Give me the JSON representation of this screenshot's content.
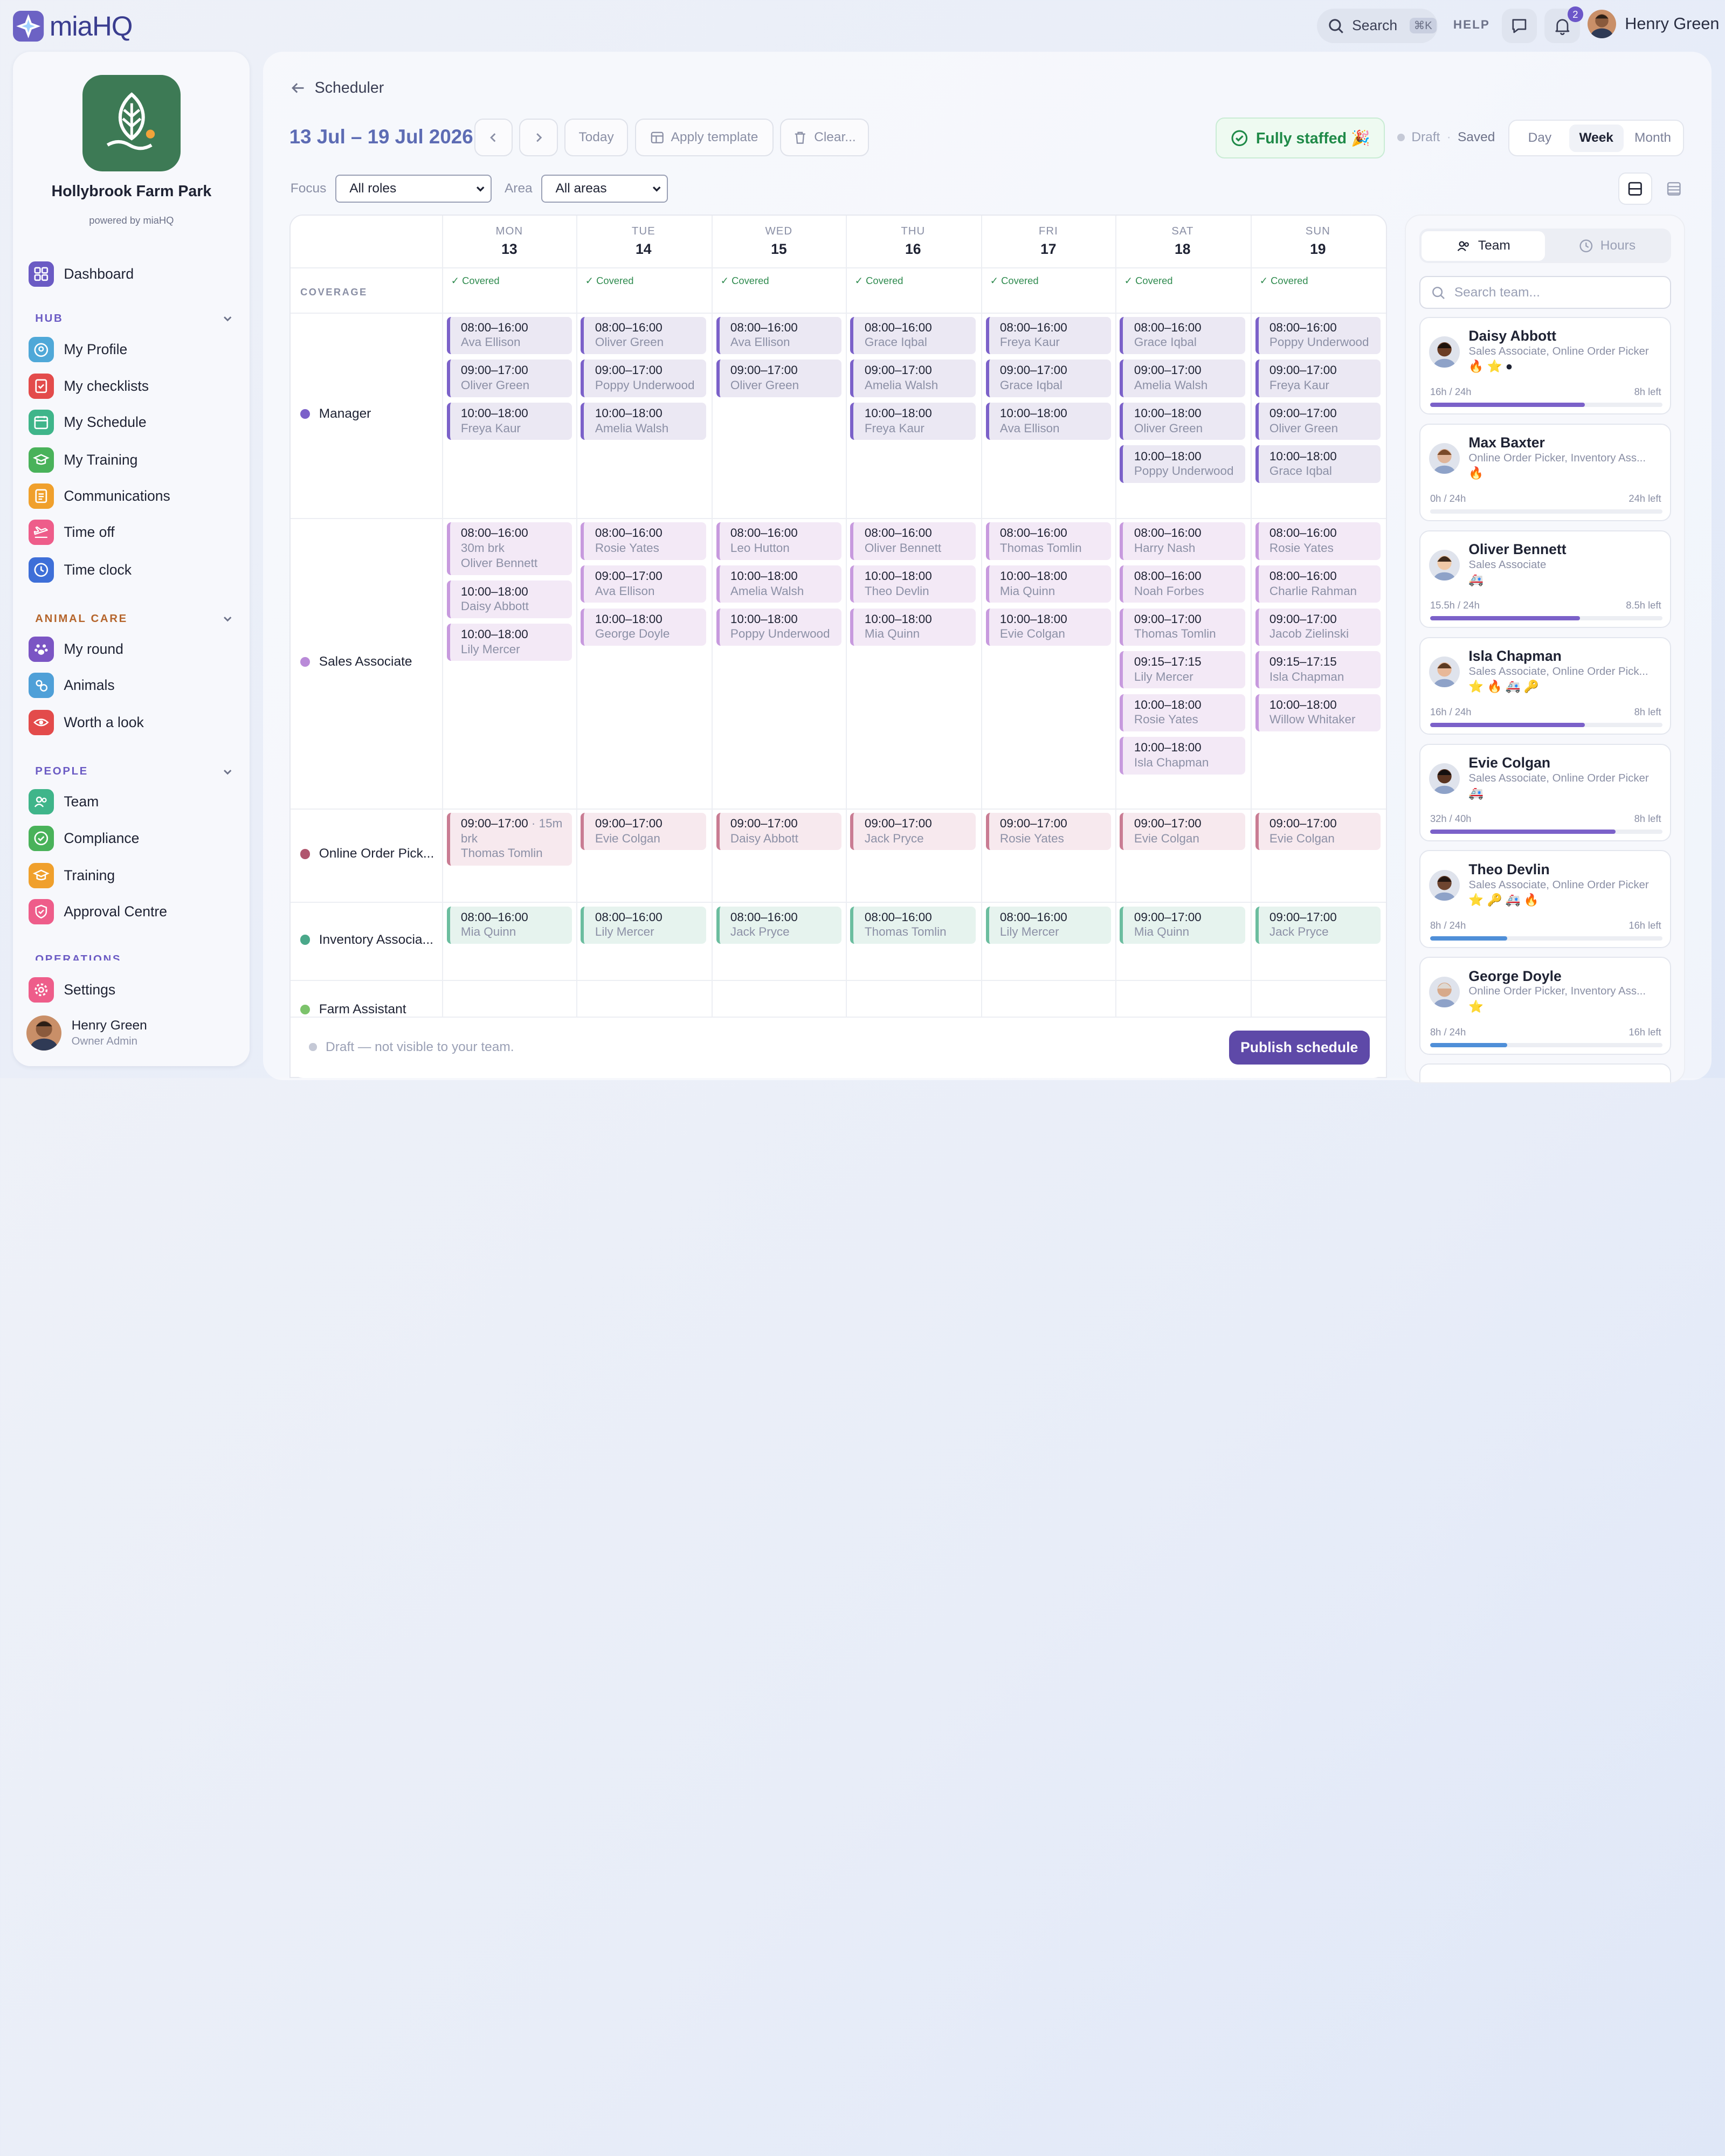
{
  "app": {
    "name": "miaHQ"
  },
  "topbar": {
    "search_label": "Search",
    "search_shortcut": "⌘K",
    "help": "HELP",
    "notification_count": "2",
    "user_name": "Henry Green"
  },
  "org": {
    "name": "Hollybrook Farm Park",
    "powered_by": "powered by miaHQ"
  },
  "sidebar": {
    "dashboard": "Dashboard",
    "hub": {
      "title": "HUB",
      "items": [
        "My Profile",
        "My checklists",
        "My Schedule",
        "My Training",
        "Communications",
        "Time off",
        "Time clock"
      ]
    },
    "animal_care": {
      "title": "ANIMAL CARE",
      "items": [
        "My round",
        "Animals",
        "Worth a look"
      ]
    },
    "people": {
      "title": "PEOPLE",
      "items": [
        "Team",
        "Compliance",
        "Training",
        "Approval Centre"
      ]
    },
    "operations": {
      "title": "OPERATIONS"
    },
    "settings": "Settings",
    "user": {
      "name": "Henry Green",
      "role": "Owner Admin"
    }
  },
  "scheduler": {
    "breadcrumb": "Scheduler",
    "date_range": "13 Jul – 19 Jul 2026",
    "today": "Today",
    "apply_template": "Apply template",
    "clear": "Clear...",
    "staffed": "Fully staffed 🎉",
    "status_draft": "Draft",
    "status_saved": "Saved",
    "views": [
      "Day",
      "Week",
      "Month"
    ],
    "active_view": "Week",
    "focus_label": "Focus",
    "focus_value": "All roles",
    "area_label": "Area",
    "area_value": "All areas",
    "coverage_label": "COVERAGE",
    "covered_text": "✓ Covered",
    "days": [
      {
        "dow": "MON",
        "num": "13"
      },
      {
        "dow": "TUE",
        "num": "14"
      },
      {
        "dow": "WED",
        "num": "15"
      },
      {
        "dow": "THU",
        "num": "16"
      },
      {
        "dow": "FRI",
        "num": "17"
      },
      {
        "dow": "SAT",
        "num": "18"
      },
      {
        "dow": "SUN",
        "num": "19"
      }
    ],
    "roles": [
      {
        "name": "Manager",
        "color": "#7b61c9",
        "bg": "#ebe8f3",
        "border": "#7b61c9",
        "days": [
          [
            {
              "t": "08:00–16:00",
              "n": "Ava Ellison"
            },
            {
              "t": "09:00–17:00",
              "n": "Oliver Green"
            },
            {
              "t": "10:00–18:00",
              "n": "Freya Kaur"
            }
          ],
          [
            {
              "t": "08:00–16:00",
              "n": "Oliver Green"
            },
            {
              "t": "09:00–17:00",
              "n": "Poppy Underwood"
            },
            {
              "t": "10:00–18:00",
              "n": "Amelia Walsh"
            }
          ],
          [
            {
              "t": "08:00–16:00",
              "n": "Ava Ellison"
            },
            {
              "t": "09:00–17:00",
              "n": "Oliver Green"
            }
          ],
          [
            {
              "t": "08:00–16:00",
              "n": "Grace Iqbal"
            },
            {
              "t": "09:00–17:00",
              "n": "Amelia Walsh"
            },
            {
              "t": "10:00–18:00",
              "n": "Freya Kaur"
            }
          ],
          [
            {
              "t": "08:00–16:00",
              "n": "Freya Kaur"
            },
            {
              "t": "09:00–17:00",
              "n": "Grace Iqbal"
            },
            {
              "t": "10:00–18:00",
              "n": "Ava Ellison"
            }
          ],
          [
            {
              "t": "08:00–16:00",
              "n": "Grace Iqbal"
            },
            {
              "t": "09:00–17:00",
              "n": "Amelia Walsh"
            },
            {
              "t": "10:00–18:00",
              "n": "Oliver Green"
            },
            {
              "t": "10:00–18:00",
              "n": "Poppy Underwood"
            }
          ],
          [
            {
              "t": "08:00–16:00",
              "n": "Poppy Underwood"
            },
            {
              "t": "09:00–17:00",
              "n": "Freya Kaur"
            },
            {
              "t": "09:00–17:00",
              "n": "Oliver Green"
            },
            {
              "t": "10:00–18:00",
              "n": "Grace Iqbal"
            }
          ]
        ]
      },
      {
        "name": "Sales Associate",
        "color": "#b98ad8",
        "bg": "#f3e9f6",
        "border": "#c79ade",
        "days": [
          [
            {
              "t": "08:00–16:00",
              "b": "30m brk",
              "n": "Oliver Bennett"
            },
            {
              "t": "10:00–18:00",
              "n": "Daisy Abbott"
            },
            {
              "t": "10:00–18:00",
              "n": "Lily Mercer"
            }
          ],
          [
            {
              "t": "08:00–16:00",
              "n": "Rosie Yates"
            },
            {
              "t": "09:00–17:00",
              "n": "Ava Ellison"
            },
            {
              "t": "10:00–18:00",
              "n": "George Doyle"
            }
          ],
          [
            {
              "t": "08:00–16:00",
              "n": "Leo Hutton"
            },
            {
              "t": "10:00–18:00",
              "n": "Amelia Walsh"
            },
            {
              "t": "10:00–18:00",
              "n": "Poppy Underwood"
            }
          ],
          [
            {
              "t": "08:00–16:00",
              "n": "Oliver Bennett"
            },
            {
              "t": "10:00–18:00",
              "n": "Theo Devlin"
            },
            {
              "t": "10:00–18:00",
              "n": "Mia Quinn"
            }
          ],
          [
            {
              "t": "08:00–16:00",
              "n": "Thomas Tomlin"
            },
            {
              "t": "10:00–18:00",
              "n": "Mia Quinn"
            },
            {
              "t": "10:00–18:00",
              "n": "Evie Colgan"
            }
          ],
          [
            {
              "t": "08:00–16:00",
              "n": "Harry Nash"
            },
            {
              "t": "08:00–16:00",
              "n": "Noah Forbes"
            },
            {
              "t": "09:00–17:00",
              "n": "Thomas Tomlin"
            },
            {
              "t": "09:15–17:15",
              "n": "Lily Mercer"
            },
            {
              "t": "10:00–18:00",
              "n": "Rosie Yates"
            },
            {
              "t": "10:00–18:00",
              "n": "Isla Chapman"
            }
          ],
          [
            {
              "t": "08:00–16:00",
              "n": "Rosie Yates"
            },
            {
              "t": "08:00–16:00",
              "n": "Charlie Rahman"
            },
            {
              "t": "09:00–17:00",
              "n": "Jacob Zielinski"
            },
            {
              "t": "09:15–17:15",
              "n": "Isla Chapman"
            },
            {
              "t": "10:00–18:00",
              "n": "Willow Whitaker"
            }
          ]
        ]
      },
      {
        "name": "Online Order Pick...",
        "color": "#b0566e",
        "bg": "#f7e9ee",
        "border": "#c97c93",
        "days": [
          [
            {
              "t": "09:00–17:00",
              "x": "· 15m",
              "b": "brk",
              "n": "Thomas Tomlin"
            }
          ],
          [
            {
              "t": "09:00–17:00",
              "n": "Evie Colgan"
            }
          ],
          [
            {
              "t": "09:00–17:00",
              "n": "Daisy Abbott"
            }
          ],
          [
            {
              "t": "09:00–17:00",
              "n": "Jack Pryce"
            }
          ],
          [
            {
              "t": "09:00–17:00",
              "n": "Rosie Yates"
            }
          ],
          [
            {
              "t": "09:00–17:00",
              "n": "Evie Colgan"
            }
          ],
          [
            {
              "t": "09:00–17:00",
              "n": "Evie Colgan"
            }
          ]
        ]
      },
      {
        "name": "Inventory Associa...",
        "color": "#4aa88a",
        "bg": "#e6f3ee",
        "border": "#6bbd9f",
        "days": [
          [
            {
              "t": "08:00–16:00",
              "n": "Mia Quinn"
            }
          ],
          [
            {
              "t": "08:00–16:00",
              "n": "Lily Mercer"
            }
          ],
          [
            {
              "t": "08:00–16:00",
              "n": "Jack Pryce"
            }
          ],
          [
            {
              "t": "08:00–16:00",
              "n": "Thomas Tomlin"
            }
          ],
          [
            {
              "t": "08:00–16:00",
              "n": "Lily Mercer"
            }
          ],
          [
            {
              "t": "09:00–17:00",
              "n": "Mia Quinn"
            }
          ],
          [
            {
              "t": "09:00–17:00",
              "n": "Jack Pryce"
            }
          ]
        ]
      },
      {
        "name": "Farm Assistant",
        "color": "#7cc36b",
        "bg": "#eef7ea",
        "border": "#8fca7f",
        "days": [
          [],
          [],
          [],
          [],
          [],
          [],
          []
        ]
      }
    ],
    "footer_draft": "Draft — not visible to your team.",
    "publish": "Publish schedule"
  },
  "team_panel": {
    "tab_team": "Team",
    "tab_hours": "Hours",
    "search_placeholder": "Search team...",
    "members": [
      {
        "name": "Daisy Abbott",
        "roles": "Sales Associate, Online Order Picker",
        "badges": "🔥 ⭐ ●",
        "hours": "16h / 24h",
        "left": "8h left",
        "progress": 0.667,
        "bar": "#7b61c9"
      },
      {
        "name": "Max Baxter",
        "roles": "Online Order Picker, Inventory Ass...",
        "badges": "🔥",
        "hours": "0h / 24h",
        "left": "24h left",
        "progress": 0,
        "bar": "#7b61c9"
      },
      {
        "name": "Oliver Bennett",
        "roles": "Sales Associate",
        "badges": "🚑",
        "hours": "15.5h / 24h",
        "left": "8.5h left",
        "progress": 0.646,
        "bar": "#7b61c9"
      },
      {
        "name": "Isla Chapman",
        "roles": "Sales Associate, Online Order Pick...",
        "badges": "⭐ 🔥 🚑 🔑",
        "hours": "16h / 24h",
        "left": "8h left",
        "progress": 0.667,
        "bar": "#7b61c9"
      },
      {
        "name": "Evie Colgan",
        "roles": "Sales Associate, Online Order Picker",
        "badges": "🚑",
        "hours": "32h / 40h",
        "left": "8h left",
        "progress": 0.8,
        "bar": "#7b61c9"
      },
      {
        "name": "Theo Devlin",
        "roles": "Sales Associate, Online Order Picker",
        "badges": "⭐ 🔑 🚑 🔥",
        "hours": "8h / 24h",
        "left": "16h left",
        "progress": 0.333,
        "bar": "#4f8fd8"
      },
      {
        "name": "George Doyle",
        "roles": "Online Order Picker, Inventory Ass...",
        "badges": "⭐",
        "hours": "8h / 24h",
        "left": "16h left",
        "progress": 0.333,
        "bar": "#4f8fd8"
      }
    ]
  },
  "colors": {
    "accent": "#5e49a8",
    "date_range": "#5d6cb4",
    "staffed_green": "#1f8a48"
  }
}
